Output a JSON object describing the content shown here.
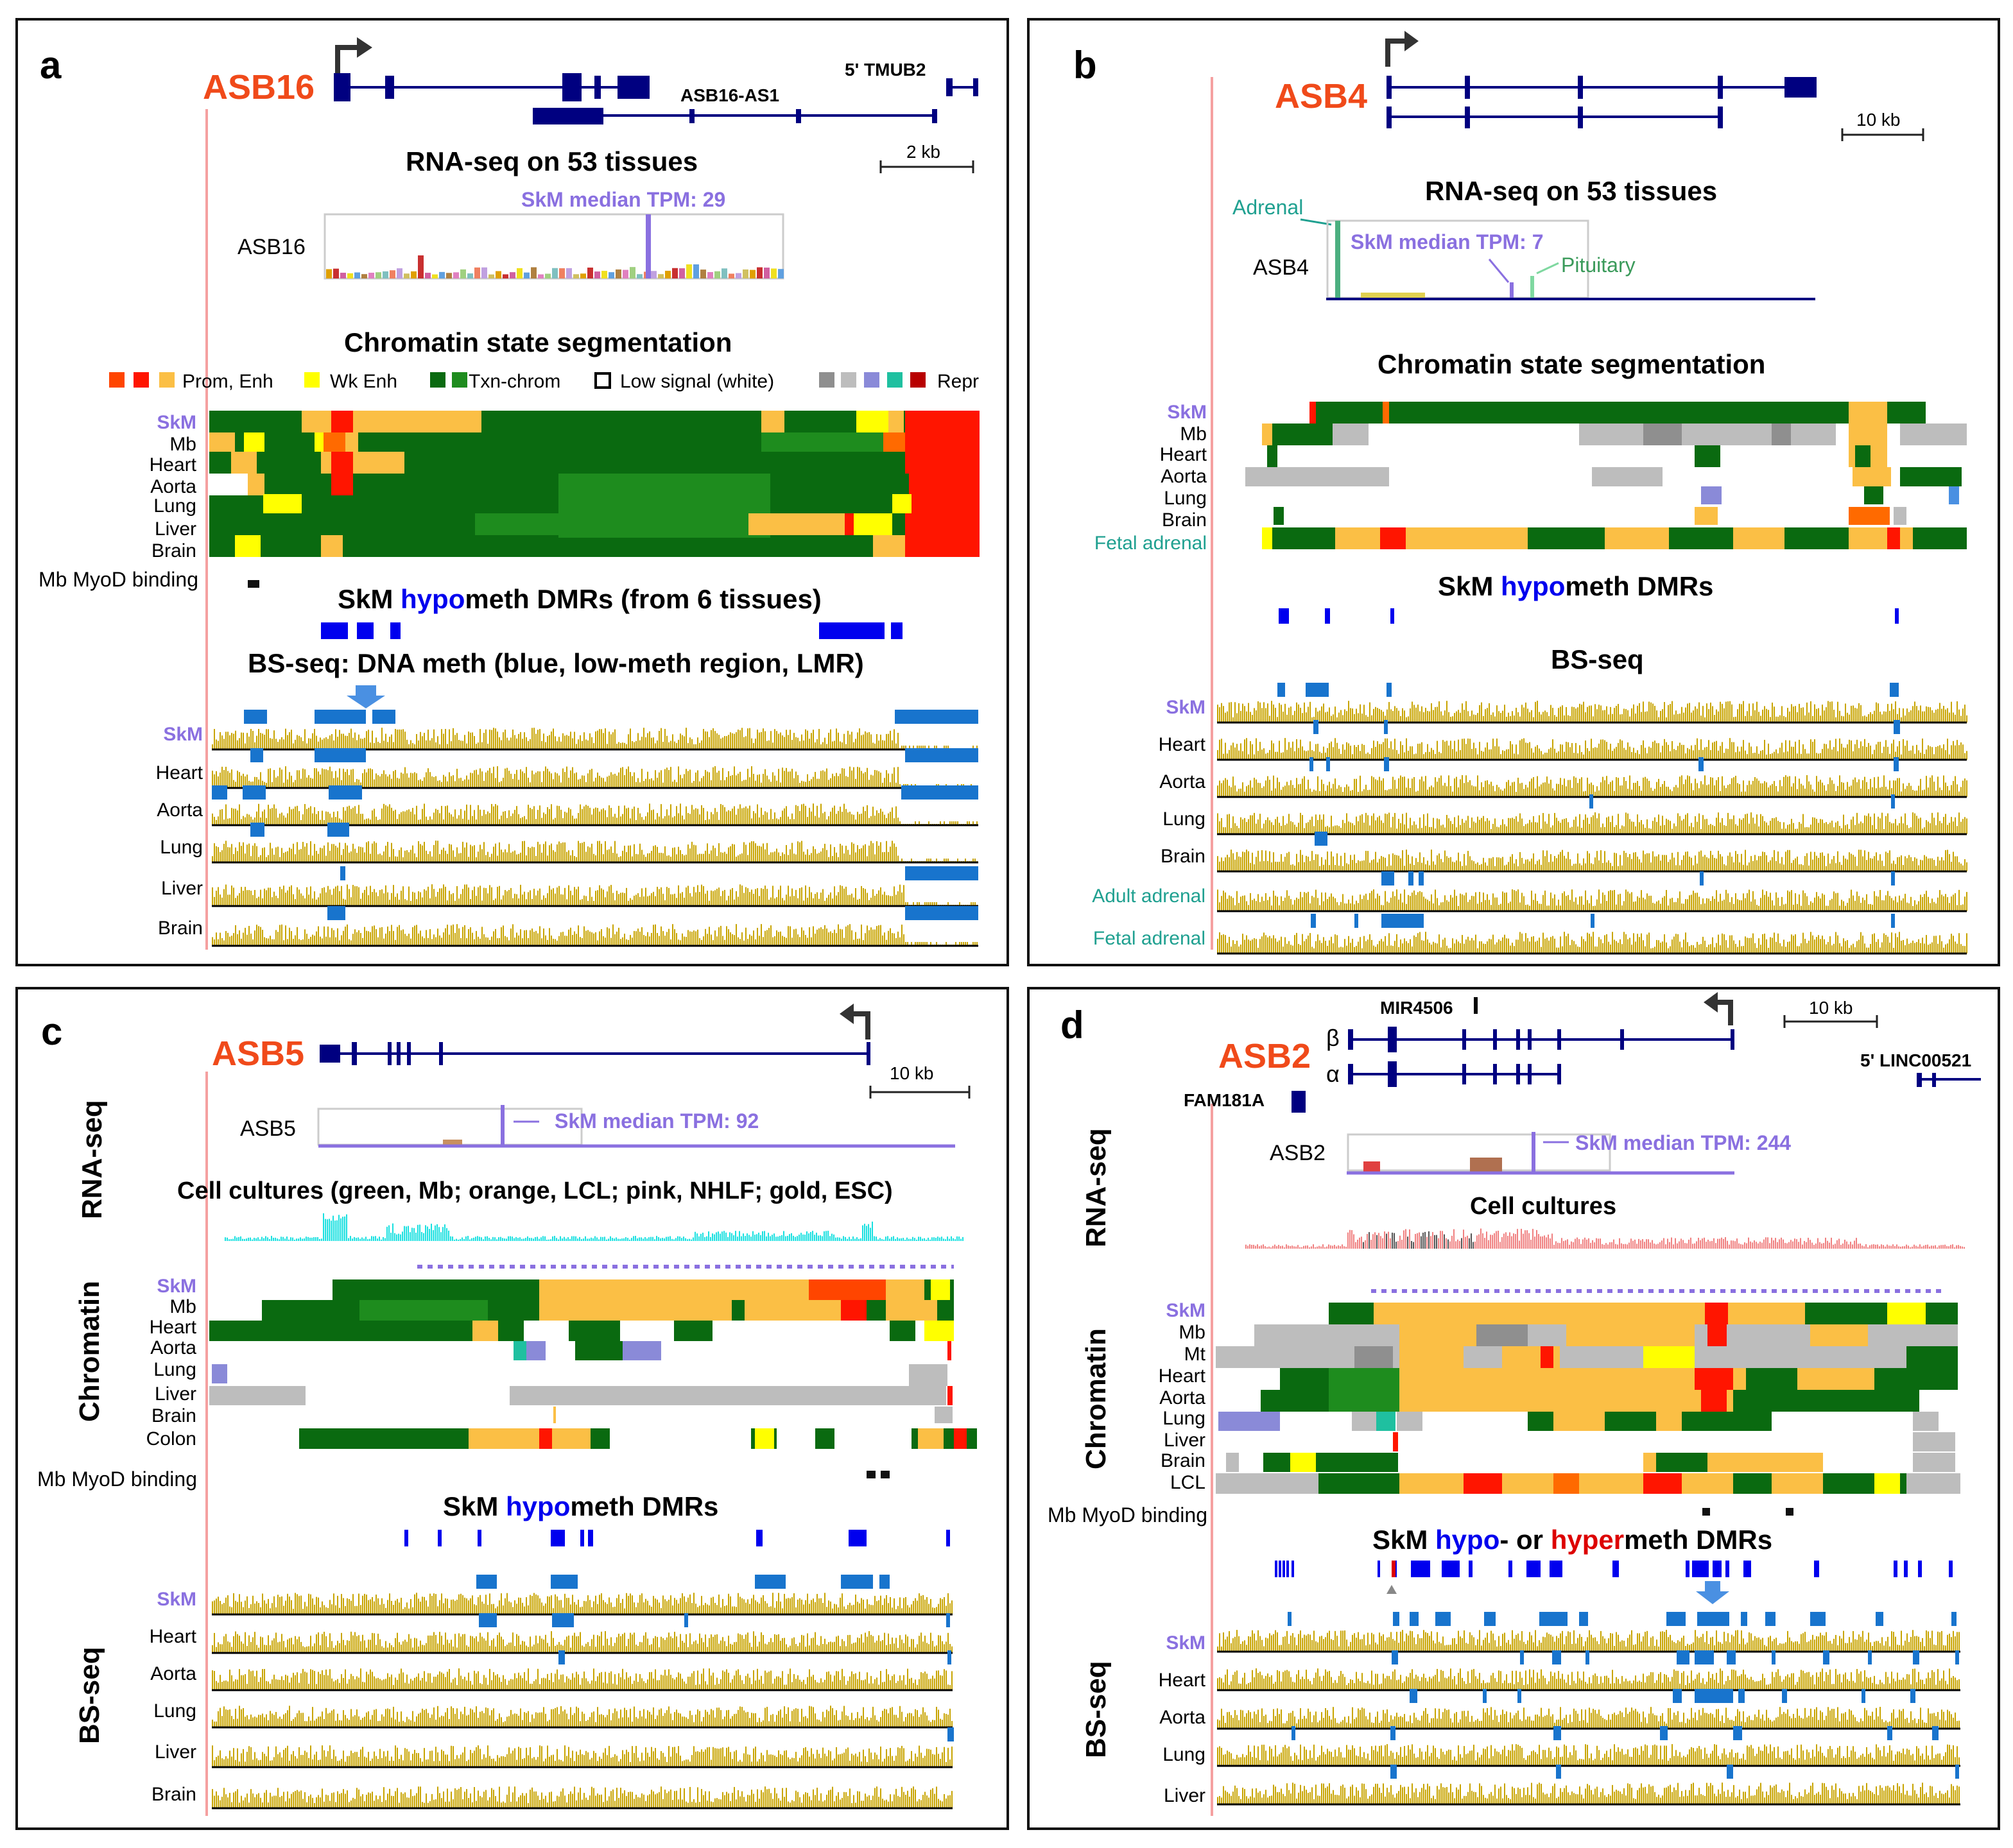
{
  "colors": {
    "gene": "#000066",
    "exon": "#000080",
    "orange_title": "#f04a1a",
    "skm_purple": "#8a70e0",
    "blue_dmr": "#0000ee",
    "red_dmr": "#dd0000",
    "bs_gold": "#c8a400",
    "lmr_blue": "#1874cd",
    "txn_green": "#0a6a10",
    "txn_green2": "#1e8c1e",
    "prom_red": "#ff1500",
    "enh_orange": "#fbbf45",
    "wk_yellow": "#ffff00",
    "repr_grey": "#bdbdbd",
    "teal": "#1fa090",
    "pink_axis": "#f5a0a0"
  },
  "panels": [
    {
      "letter": "a",
      "gene": "ASB16",
      "antisense": "ASB16-AS1",
      "neighbor": "5' TMUB2",
      "scale": "2 kb",
      "rna_title": "RNA-seq on 53 tissues",
      "rna_label": "ASB16",
      "tpm": "SkM median TPM: 29",
      "chrom_title": "Chromatin state segmentation",
      "legend": [
        "Prom, Enh",
        "Wk Enh",
        "Txn-chrom",
        "Low signal (white)",
        "Repr"
      ],
      "chrom_rows": [
        "SkM",
        "Mb",
        "Heart",
        "Aorta",
        "Lung",
        "Liver",
        "Brain"
      ],
      "myod": "Mb MyoD binding",
      "dmr_title_pre": "SkM ",
      "dmr_title_hypo": "hypo",
      "dmr_title_post": "meth DMRs (from 6 tissues)",
      "bs_title": "BS-seq: DNA meth (blue, low-meth region, LMR)",
      "bs_rows": [
        "SkM",
        "Heart",
        "Aorta",
        "Lung",
        "Liver",
        "Brain"
      ]
    },
    {
      "letter": "b",
      "gene": "ASB4",
      "scale": "10 kb",
      "rna_title": "RNA-seq on 53 tissues",
      "rna_label": "ASB4",
      "tpm": "SkM median TPM: 7",
      "adrenal": "Adrenal",
      "pituitary": "Pituitary",
      "chrom_title": "Chromatin state segmentation",
      "chrom_rows": [
        "SkM",
        "Mb",
        "Heart",
        "Aorta",
        "Lung",
        "Brain",
        "Fetal adrenal"
      ],
      "dmr_title_pre": "SkM ",
      "dmr_title_hypo": "hypo",
      "dmr_title_post": "meth DMRs",
      "bs_title": "BS-seq",
      "bs_rows": [
        "SkM",
        "Heart",
        "Aorta",
        "Lung",
        "Brain",
        "Adult adrenal",
        "Fetal adrenal"
      ]
    },
    {
      "letter": "c",
      "gene": "ASB5",
      "scale": "10 kb",
      "rna_side": "RNA-seq",
      "rna_label": "ASB5",
      "tpm": "SkM median TPM: 92",
      "cell_title": "Cell cultures (green, Mb; orange, LCL; pink, NHLF; gold, ESC)",
      "chrom_side": "Chromatin",
      "chrom_rows": [
        "SkM",
        "Mb",
        "Heart",
        "Aorta",
        "Lung",
        "Liver",
        "Brain",
        "Colon"
      ],
      "myod": "Mb MyoD binding",
      "dmr_title_pre": "SkM ",
      "dmr_title_hypo": "hypo",
      "dmr_title_post": "meth DMRs",
      "bs_side": "BS-seq",
      "bs_rows": [
        "SkM",
        "Heart",
        "Aorta",
        "Lung",
        "Liver",
        "Brain"
      ]
    },
    {
      "letter": "d",
      "gene": "ASB2",
      "mir": "MIR4506",
      "fam": "FAM181A",
      "linc": "5' LINC00521",
      "beta": "β",
      "alpha": "α",
      "scale": "10 kb",
      "rna_side": "RNA-seq",
      "rna_label": "ASB2",
      "tpm": "SkM median TPM: 244",
      "cell_title": "Cell cultures",
      "chrom_side": "Chromatin",
      "chrom_rows": [
        "SkM",
        "Mb",
        "Mt",
        "Heart",
        "Aorta",
        "Lung",
        "Liver",
        "Brain",
        "LCL"
      ],
      "myod": "Mb MyoD binding",
      "dmr_title_pre": "SkM ",
      "dmr_title_hypo": "hypo",
      "dmr_title_mid": "- or ",
      "dmr_title_hyper": "hyper",
      "dmr_title_post": "meth DMRs",
      "bs_side": "BS-seq",
      "bs_rows": [
        "SkM",
        "Heart",
        "Aorta",
        "Lung",
        "Liver"
      ]
    }
  ]
}
